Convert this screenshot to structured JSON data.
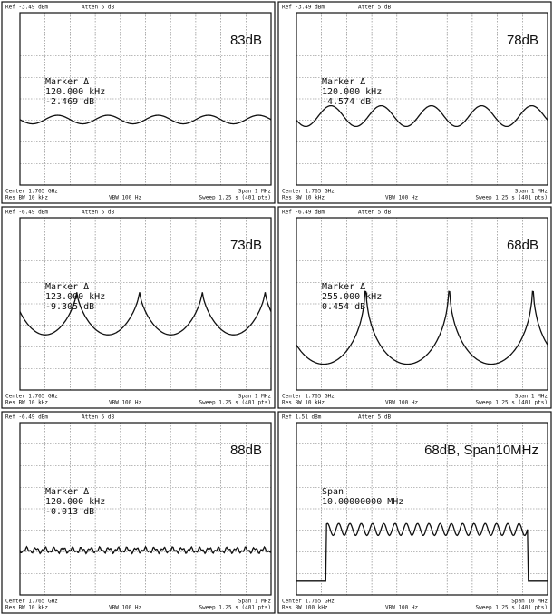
{
  "panels": [
    {
      "ref": "Ref -3.49 dBm",
      "atten": "Atten 5 dB",
      "label": "83dB",
      "marker_title": "Marker Δ",
      "marker_freq": "120.000 kHz",
      "marker_level": "-2.469 dB",
      "center": "Center 1.765 GHz",
      "res_bw": "Res BW 10 kHz",
      "vbw": "VBW 100 Hz",
      "span": "Span 1 MHz",
      "sweep": "Sweep 1.25 s (401 pts)"
    },
    {
      "ref": "Ref -3.49 dBm",
      "atten": "Atten 5 dB",
      "label": "78dB",
      "marker_title": "Marker Δ",
      "marker_freq": "120.000 kHz",
      "marker_level": "-4.574 dB",
      "center": "Center 1.765 GHz",
      "res_bw": "Res BW 10 kHz",
      "vbw": "VBW 100 Hz",
      "span": "Span 1 MHz",
      "sweep": "Sweep 1.25 s (401 pts)"
    },
    {
      "ref": "Ref -6.49 dBm",
      "atten": "Atten 5 dB",
      "label": "73dB",
      "marker_title": "Marker Δ",
      "marker_freq": "123.000 kHz",
      "marker_level": "-9.305 dB",
      "center": "Center 1.765 GHz",
      "res_bw": "Res BW 10 kHz",
      "vbw": "VBW 100 Hz",
      "span": "Span 1 MHz",
      "sweep": "Sweep 1.25 s (401 pts)"
    },
    {
      "ref": "Ref -6.49 dBm",
      "atten": "Atten 5 dB",
      "label": "68dB",
      "marker_title": "Marker Δ",
      "marker_freq": "255.000 kHz",
      "marker_level": "0.454 dB",
      "center": "Center 1.765 GHz",
      "res_bw": "Res BW 10 kHz",
      "vbw": "VBW 100 Hz",
      "span": "Span 1 MHz",
      "sweep": "Sweep 1.25 s (401 pts)"
    },
    {
      "ref": "Ref -6.49 dBm",
      "atten": "Atten 5 dB",
      "label": "88dB",
      "marker_title": "Marker Δ",
      "marker_freq": "120.000 kHz",
      "marker_level": "-0.013 dB",
      "center": "Center 1.765 GHz",
      "res_bw": "Res BW 10 kHz",
      "vbw": "VBW 100 Hz",
      "span": "Span 1 MHz",
      "sweep": "Sweep 1.25 s (401 pts)"
    },
    {
      "ref": "Ref 1.51 dBm",
      "atten": "Atten 5 dB",
      "label": "68dB, Span10MHz",
      "marker_title": "Span",
      "marker_freq": "10.00000000 MHz",
      "center": "Center 1.765 GHz",
      "res_bw": "Res BW 100 kHz",
      "vbw": "VBW 100 Hz",
      "span": "Span 10 MHz",
      "sweep": "Sweep 1.25 s (401 pts)"
    }
  ]
}
